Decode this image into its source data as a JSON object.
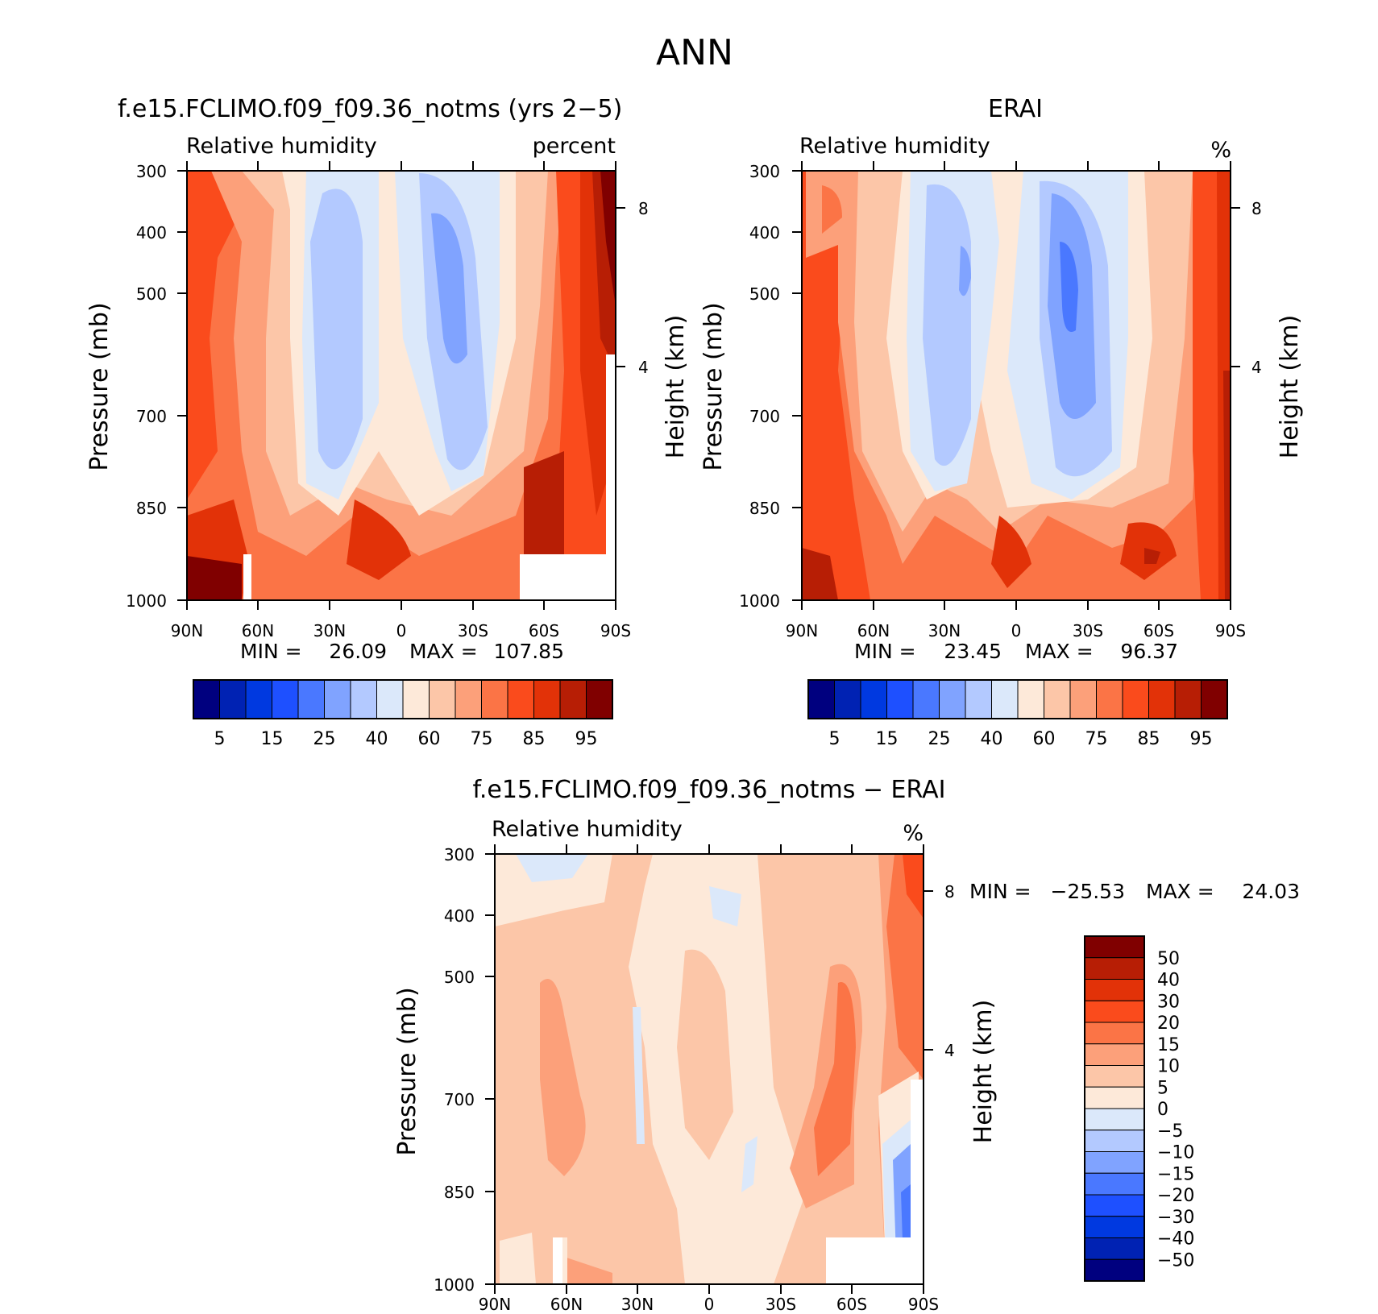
{
  "figure_title": "ANN",
  "chart_data": [
    {
      "type": "heatmap",
      "title": "f.e15.FCLIMO.f09_f09.36_notms (yrs 2−5)",
      "subtitle_left": "Relative humidity",
      "subtitle_right": "percent",
      "xlabel": "",
      "ylabel": "Pressure (mb)",
      "y2label": "Height (km)",
      "x_ticks": [
        "90N",
        "60N",
        "30N",
        "0",
        "30S",
        "60S",
        "90S"
      ],
      "y_ticks": [
        "300",
        "400",
        "500",
        "700",
        "850",
        "1000"
      ],
      "y2_ticks": [
        "8",
        "4"
      ],
      "min_label": "MIN =",
      "min_value": "26.09",
      "max_label": "MAX =",
      "max_value": "107.85",
      "colorbar_labels": [
        "5",
        "15",
        "25",
        "40",
        "60",
        "75",
        "85",
        "95"
      ],
      "colorbar_colors": [
        "#00007f",
        "#0022b3",
        "#0039e0",
        "#1e50ff",
        "#4a78ff",
        "#80a3ff",
        "#b3c9ff",
        "#dbe8fa",
        "#fde9d9",
        "#fcc6a8",
        "#fca07a",
        "#fb7446",
        "#fa4b1c",
        "#e23208",
        "#b71e05",
        "#800000"
      ],
      "levels": [
        5,
        10,
        15,
        20,
        25,
        30,
        40,
        50,
        60,
        65,
        75,
        80,
        85,
        90,
        95
      ]
    },
    {
      "type": "heatmap",
      "title": "ERAI",
      "subtitle_left": "Relative humidity",
      "subtitle_right": "%",
      "xlabel": "",
      "ylabel": "Pressure (mb)",
      "y2label": "Height (km)",
      "x_ticks": [
        "90N",
        "60N",
        "30N",
        "0",
        "30S",
        "60S",
        "90S"
      ],
      "y_ticks": [
        "300",
        "400",
        "500",
        "700",
        "850",
        "1000"
      ],
      "y2_ticks": [
        "8",
        "4"
      ],
      "min_label": "MIN =",
      "min_value": "23.45",
      "max_label": "MAX =",
      "max_value": "96.37",
      "colorbar_labels": [
        "5",
        "15",
        "25",
        "40",
        "60",
        "75",
        "85",
        "95"
      ],
      "colorbar_colors": [
        "#00007f",
        "#0022b3",
        "#0039e0",
        "#1e50ff",
        "#4a78ff",
        "#80a3ff",
        "#b3c9ff",
        "#dbe8fa",
        "#fde9d9",
        "#fcc6a8",
        "#fca07a",
        "#fb7446",
        "#fa4b1c",
        "#e23208",
        "#b71e05",
        "#800000"
      ]
    },
    {
      "type": "heatmap",
      "title": "f.e15.FCLIMO.f09_f09.36_notms − ERAI",
      "subtitle_left": "Relative humidity",
      "subtitle_right": "%",
      "xlabel": "",
      "ylabel": "Pressure (mb)",
      "y2label": "Height (km)",
      "x_ticks": [
        "90N",
        "60N",
        "30N",
        "0",
        "30S",
        "60S",
        "90S"
      ],
      "y_ticks": [
        "300",
        "400",
        "500",
        "700",
        "850",
        "1000"
      ],
      "y2_ticks": [
        "8",
        "4"
      ],
      "min_label": "MIN =",
      "min_value": "−25.53",
      "max_label": "MAX =",
      "max_value": "24.03",
      "colorbar_labels": [
        "50",
        "40",
        "30",
        "20",
        "15",
        "10",
        "5",
        "0",
        "−5",
        "−10",
        "−15",
        "−20",
        "−30",
        "−40",
        "−50"
      ],
      "colorbar_colors": [
        "#800000",
        "#b71e05",
        "#e23208",
        "#fa4b1c",
        "#fb7446",
        "#fca07a",
        "#fcc6a8",
        "#fde9d9",
        "#dbe8fa",
        "#b3c9ff",
        "#80a3ff",
        "#4a78ff",
        "#1e50ff",
        "#0039e0",
        "#0022b3",
        "#00007f"
      ]
    }
  ]
}
